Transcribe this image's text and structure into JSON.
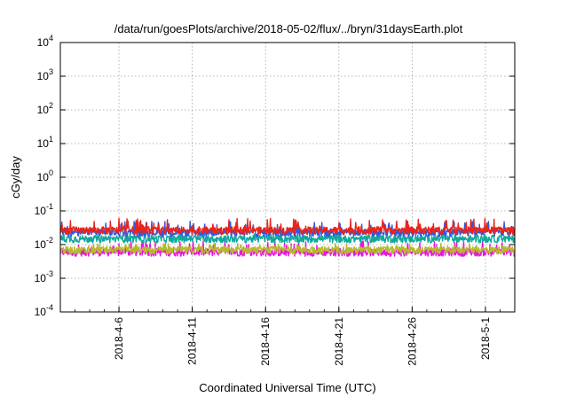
{
  "chart_data": {
    "type": "line",
    "title": "/data/run/goesPlots/archive/2018-05-02/flux/../bryn/31daysEarth.plot",
    "xlabel": "Coordinated Universal Time (UTC)",
    "ylabel": "cGy/day",
    "y_scale": "log",
    "ylim": [
      0.0001,
      10000
    ],
    "y_ticks": [
      {
        "mantissa": "10",
        "exp": "-4"
      },
      {
        "mantissa": "10",
        "exp": "-3"
      },
      {
        "mantissa": "10",
        "exp": "-2"
      },
      {
        "mantissa": "10",
        "exp": "-1"
      },
      {
        "mantissa": "10",
        "exp": "0"
      },
      {
        "mantissa": "10",
        "exp": "1"
      },
      {
        "mantissa": "10",
        "exp": "2"
      },
      {
        "mantissa": "10",
        "exp": "3"
      },
      {
        "mantissa": "10",
        "exp": "4"
      }
    ],
    "xlim": [
      "2018-04-02",
      "2018-05-03"
    ],
    "x_ticks": [
      "2018-4-6",
      "2018-4-11",
      "2018-4-16",
      "2018-4-21",
      "2018-4-26",
      "2018-5-1"
    ],
    "grid": true,
    "legend": "none",
    "series": [
      {
        "color": "#e8241c",
        "approx_level": 0.027,
        "spike_level": 0.06
      },
      {
        "color": "#3157e0",
        "approx_level": 0.023,
        "spike_level": 0.05
      },
      {
        "color": "#10a89a",
        "approx_level": 0.015,
        "spike_level": 0.022
      },
      {
        "color": "#b8b830",
        "approx_level": 0.007,
        "spike_level": 0.011
      },
      {
        "color": "#e814e0",
        "approx_level": 0.006,
        "spike_level": 0.013
      }
    ]
  }
}
